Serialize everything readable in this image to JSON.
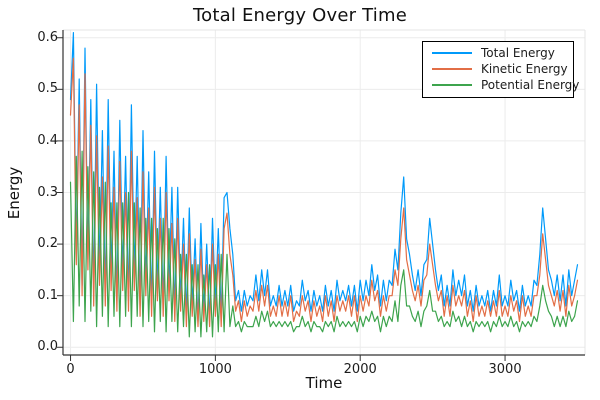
{
  "chart_data": {
    "type": "line",
    "title": "Total Energy Over Time",
    "xlabel": "Time",
    "ylabel": "Energy",
    "xlim": [
      -52,
      3552
    ],
    "ylim": [
      -0.015,
      0.615
    ],
    "grid": true,
    "legend_position": "top-right",
    "x_ticks": [
      {
        "value": 0,
        "label": "0"
      },
      {
        "value": 1000,
        "label": "1000"
      },
      {
        "value": 2000,
        "label": "2000"
      },
      {
        "value": 3000,
        "label": "3000"
      }
    ],
    "y_ticks": [
      {
        "value": 0.0,
        "label": "0.0"
      },
      {
        "value": 0.1,
        "label": "0.1"
      },
      {
        "value": 0.2,
        "label": "0.2"
      },
      {
        "value": 0.3,
        "label": "0.3"
      },
      {
        "value": 0.4,
        "label": "0.4"
      },
      {
        "value": 0.5,
        "label": "0.5"
      },
      {
        "value": 0.6,
        "label": "0.6"
      }
    ],
    "t_start": 0,
    "t_step": 20,
    "series": [
      {
        "name": "Total Energy",
        "color": "#009AFA",
        "values": [
          0.48,
          0.61,
          0.18,
          0.52,
          0.12,
          0.58,
          0.17,
          0.48,
          0.11,
          0.51,
          0.15,
          0.42,
          0.1,
          0.48,
          0.14,
          0.38,
          0.09,
          0.44,
          0.14,
          0.37,
          0.09,
          0.47,
          0.14,
          0.37,
          0.08,
          0.42,
          0.12,
          0.34,
          0.08,
          0.38,
          0.11,
          0.31,
          0.08,
          0.37,
          0.11,
          0.31,
          0.07,
          0.31,
          0.09,
          0.25,
          0.06,
          0.27,
          0.08,
          0.21,
          0.05,
          0.24,
          0.07,
          0.2,
          0.05,
          0.25,
          0.08,
          0.23,
          0.06,
          0.29,
          0.3,
          0.23,
          0.18,
          0.09,
          0.11,
          0.07,
          0.11,
          0.08,
          0.1,
          0.09,
          0.14,
          0.09,
          0.15,
          0.1,
          0.15,
          0.08,
          0.1,
          0.08,
          0.12,
          0.08,
          0.11,
          0.08,
          0.12,
          0.07,
          0.09,
          0.08,
          0.13,
          0.09,
          0.11,
          0.07,
          0.11,
          0.08,
          0.1,
          0.07,
          0.12,
          0.08,
          0.11,
          0.07,
          0.13,
          0.09,
          0.11,
          0.09,
          0.12,
          0.08,
          0.12,
          0.07,
          0.13,
          0.09,
          0.13,
          0.1,
          0.16,
          0.11,
          0.14,
          0.08,
          0.13,
          0.09,
          0.13,
          0.12,
          0.19,
          0.15,
          0.26,
          0.33,
          0.21,
          0.18,
          0.14,
          0.11,
          0.15,
          0.1,
          0.16,
          0.17,
          0.25,
          0.2,
          0.15,
          0.11,
          0.14,
          0.08,
          0.12,
          0.08,
          0.15,
          0.1,
          0.13,
          0.1,
          0.14,
          0.08,
          0.11,
          0.07,
          0.12,
          0.08,
          0.1,
          0.08,
          0.11,
          0.07,
          0.11,
          0.08,
          0.14,
          0.08,
          0.1,
          0.08,
          0.13,
          0.09,
          0.11,
          0.07,
          0.12,
          0.08,
          0.1,
          0.08,
          0.13,
          0.12,
          0.18,
          0.27,
          0.21,
          0.15,
          0.13,
          0.1,
          0.14,
          0.09,
          0.14,
          0.08,
          0.15,
          0.1,
          0.13,
          0.16
        ]
      },
      {
        "name": "Kinetic Energy",
        "color": "#E26E46",
        "values": [
          0.45,
          0.56,
          0.16,
          0.47,
          0.1,
          0.53,
          0.15,
          0.43,
          0.08,
          0.41,
          0.12,
          0.33,
          0.08,
          0.39,
          0.11,
          0.31,
          0.07,
          0.36,
          0.11,
          0.3,
          0.07,
          0.38,
          0.11,
          0.29,
          0.06,
          0.34,
          0.1,
          0.27,
          0.06,
          0.31,
          0.09,
          0.25,
          0.06,
          0.3,
          0.09,
          0.24,
          0.05,
          0.25,
          0.07,
          0.2,
          0.04,
          0.22,
          0.06,
          0.17,
          0.04,
          0.19,
          0.05,
          0.16,
          0.04,
          0.2,
          0.06,
          0.18,
          0.04,
          0.23,
          0.26,
          0.18,
          0.14,
          0.07,
          0.09,
          0.05,
          0.09,
          0.06,
          0.08,
          0.07,
          0.11,
          0.07,
          0.12,
          0.08,
          0.12,
          0.06,
          0.08,
          0.06,
          0.1,
          0.06,
          0.09,
          0.06,
          0.1,
          0.05,
          0.07,
          0.06,
          0.1,
          0.07,
          0.09,
          0.05,
          0.09,
          0.06,
          0.08,
          0.05,
          0.1,
          0.06,
          0.09,
          0.05,
          0.1,
          0.07,
          0.09,
          0.07,
          0.1,
          0.06,
          0.1,
          0.05,
          0.1,
          0.07,
          0.1,
          0.08,
          0.13,
          0.09,
          0.11,
          0.06,
          0.1,
          0.07,
          0.1,
          0.1,
          0.15,
          0.12,
          0.21,
          0.27,
          0.17,
          0.14,
          0.11,
          0.09,
          0.12,
          0.08,
          0.13,
          0.14,
          0.2,
          0.16,
          0.12,
          0.09,
          0.11,
          0.06,
          0.1,
          0.06,
          0.12,
          0.08,
          0.1,
          0.08,
          0.11,
          0.06,
          0.09,
          0.05,
          0.1,
          0.06,
          0.08,
          0.06,
          0.09,
          0.06,
          0.09,
          0.06,
          0.11,
          0.06,
          0.08,
          0.06,
          0.1,
          0.07,
          0.09,
          0.05,
          0.1,
          0.06,
          0.08,
          0.06,
          0.1,
          0.1,
          0.14,
          0.22,
          0.17,
          0.12,
          0.1,
          0.08,
          0.11,
          0.07,
          0.11,
          0.06,
          0.12,
          0.08,
          0.1,
          0.13
        ]
      },
      {
        "name": "Potential Energy",
        "color": "#3DA44D",
        "values": [
          0.32,
          0.05,
          0.37,
          0.08,
          0.38,
          0.05,
          0.35,
          0.07,
          0.34,
          0.04,
          0.31,
          0.06,
          0.32,
          0.04,
          0.28,
          0.06,
          0.28,
          0.04,
          0.28,
          0.06,
          0.3,
          0.04,
          0.28,
          0.06,
          0.27,
          0.04,
          0.25,
          0.05,
          0.25,
          0.03,
          0.23,
          0.05,
          0.25,
          0.03,
          0.23,
          0.05,
          0.21,
          0.03,
          0.18,
          0.04,
          0.18,
          0.02,
          0.16,
          0.03,
          0.16,
          0.02,
          0.14,
          0.03,
          0.16,
          0.02,
          0.16,
          0.03,
          0.18,
          0.03,
          0.18,
          0.04,
          0.08,
          0.04,
          0.05,
          0.03,
          0.05,
          0.04,
          0.04,
          0.04,
          0.06,
          0.04,
          0.07,
          0.05,
          0.07,
          0.04,
          0.05,
          0.04,
          0.05,
          0.04,
          0.05,
          0.04,
          0.05,
          0.03,
          0.04,
          0.04,
          0.06,
          0.04,
          0.05,
          0.03,
          0.05,
          0.04,
          0.04,
          0.03,
          0.05,
          0.04,
          0.05,
          0.03,
          0.06,
          0.04,
          0.05,
          0.04,
          0.05,
          0.04,
          0.05,
          0.03,
          0.06,
          0.04,
          0.06,
          0.05,
          0.07,
          0.05,
          0.06,
          0.03,
          0.06,
          0.04,
          0.06,
          0.05,
          0.09,
          0.05,
          0.12,
          0.15,
          0.08,
          0.08,
          0.06,
          0.05,
          0.07,
          0.04,
          0.07,
          0.08,
          0.11,
          0.07,
          0.07,
          0.05,
          0.06,
          0.04,
          0.05,
          0.04,
          0.07,
          0.05,
          0.06,
          0.04,
          0.06,
          0.04,
          0.05,
          0.03,
          0.05,
          0.04,
          0.05,
          0.04,
          0.05,
          0.03,
          0.05,
          0.04,
          0.06,
          0.04,
          0.05,
          0.04,
          0.06,
          0.04,
          0.05,
          0.03,
          0.05,
          0.04,
          0.05,
          0.04,
          0.06,
          0.05,
          0.08,
          0.12,
          0.09,
          0.07,
          0.06,
          0.04,
          0.06,
          0.04,
          0.06,
          0.04,
          0.07,
          0.05,
          0.06,
          0.09
        ]
      }
    ],
    "frame": {
      "spine_color": "#333333",
      "grid_color": "#ececec",
      "minor_frame_color": "#e4e4e4"
    }
  }
}
